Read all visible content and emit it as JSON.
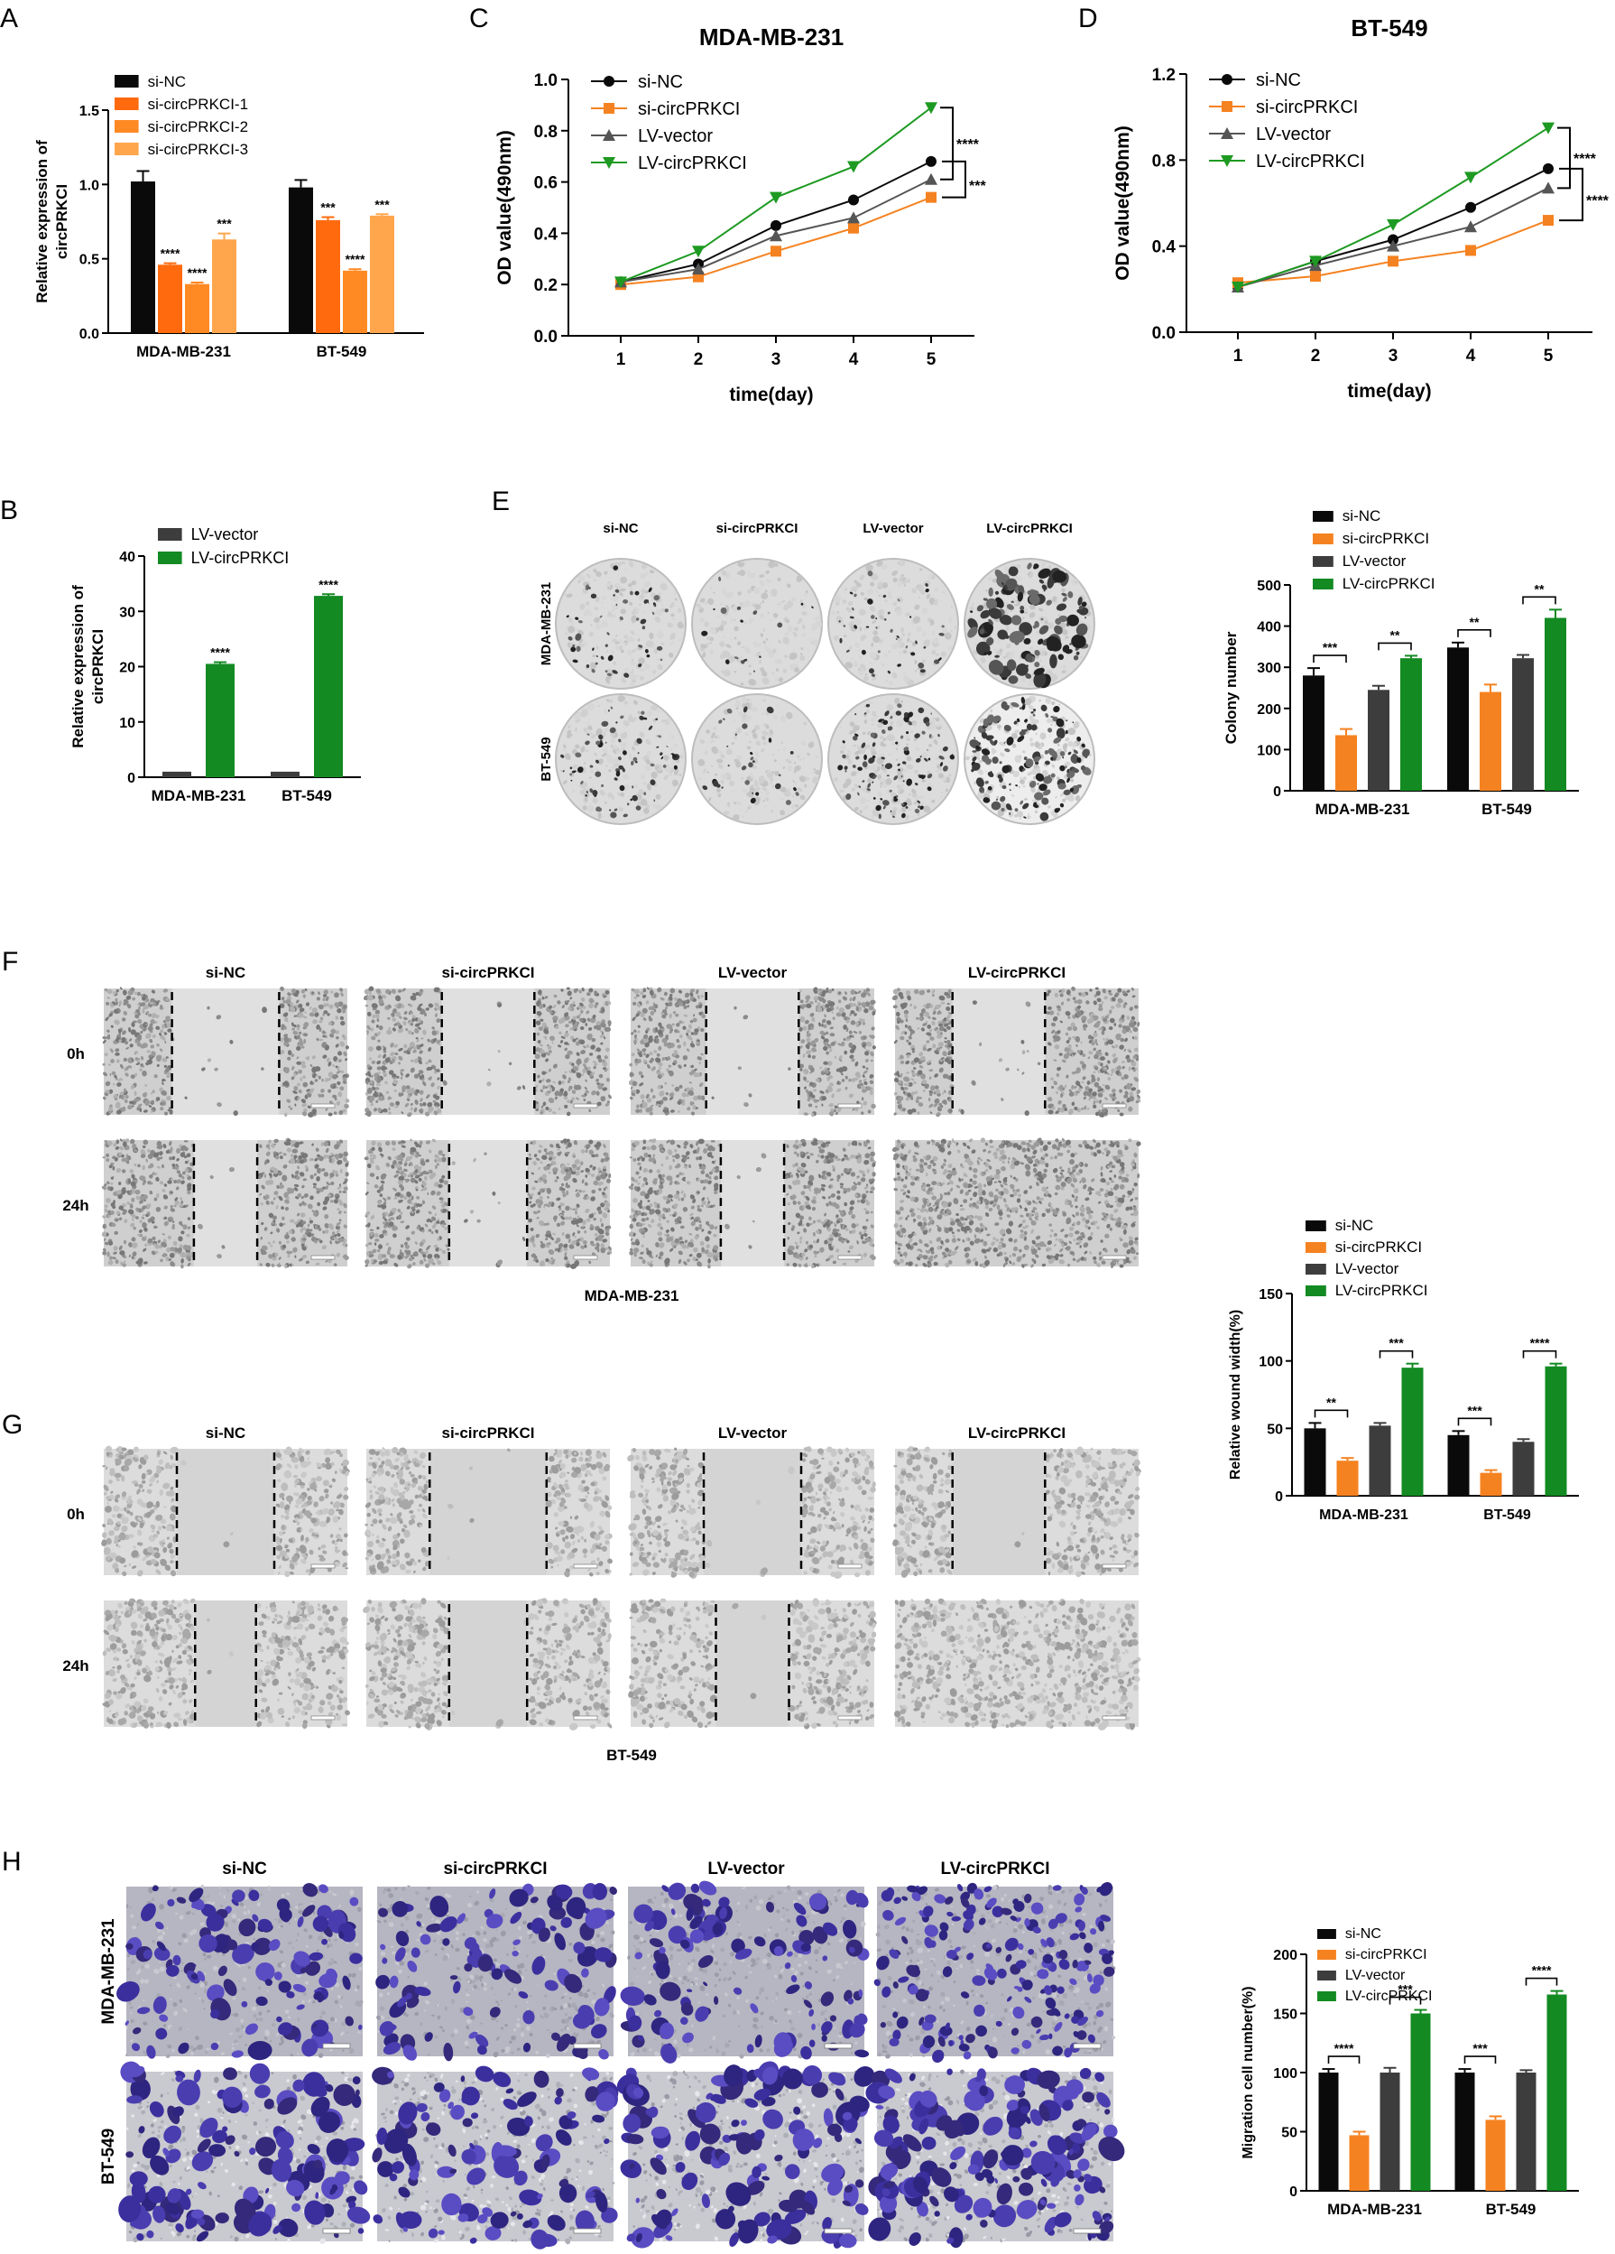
{
  "palette": {
    "black": "#0a0a0a",
    "dark_gray": "#3d3d3d",
    "orange": "#f58220",
    "orange_light": "#ffa64d",
    "orange_mid": "#ff8a24",
    "orange_deep": "#ff6a0e",
    "green": "#138a22",
    "green_line": "#1e9a22",
    "gray_line": "#555555"
  },
  "chart_data": [
    {
      "id": "A",
      "type": "bar",
      "panel_label": "A",
      "ylabel": "Relative expression of circPRKCI",
      "ylim": [
        0,
        1.5
      ],
      "yticks": [
        "0.0",
        "0.5",
        "1.0",
        "1.5"
      ],
      "categories": [
        "MDA-MB-231",
        "BT-549"
      ],
      "legend": [
        "si-NC",
        "si-circPRKCI-1",
        "si-circPRKCI-2",
        "si-circPRKCI-3"
      ],
      "colors": [
        "#0a0a0a",
        "#ff6a0e",
        "#ff8a24",
        "#ffa64d"
      ],
      "series": [
        {
          "name": "si-NC",
          "values": [
            1.02,
            0.98
          ],
          "err": [
            0.07,
            0.05
          ],
          "sig": [
            "",
            ""
          ]
        },
        {
          "name": "si-circPRKCI-1",
          "values": [
            0.46,
            0.76
          ],
          "err": [
            0.01,
            0.02
          ],
          "sig": [
            "****",
            "***"
          ]
        },
        {
          "name": "si-circPRKCI-2",
          "values": [
            0.33,
            0.42
          ],
          "err": [
            0.01,
            0.01
          ],
          "sig": [
            "****",
            "****"
          ]
        },
        {
          "name": "si-circPRKCI-3",
          "values": [
            0.63,
            0.79
          ],
          "err": [
            0.04,
            0.01
          ],
          "sig": [
            "***",
            "***"
          ]
        }
      ]
    },
    {
      "id": "B",
      "type": "bar",
      "panel_label": "B",
      "ylabel": "Relative expression of circPRKCI",
      "ylim": [
        0,
        40
      ],
      "yticks": [
        "0",
        "10",
        "20",
        "30",
        "40"
      ],
      "categories": [
        "MDA-MB-231",
        "BT-549"
      ],
      "legend": [
        "LV-vector",
        "LV-circPRKCI"
      ],
      "colors": [
        "#3d3d3d",
        "#138a22"
      ],
      "series": [
        {
          "name": "LV-vector",
          "values": [
            1.0,
            1.0
          ],
          "err": [
            0,
            0
          ],
          "sig": [
            "",
            ""
          ]
        },
        {
          "name": "LV-circPRKCI",
          "values": [
            20.5,
            32.8
          ],
          "err": [
            0.3,
            0.3
          ],
          "sig": [
            "****",
            "****"
          ]
        }
      ]
    },
    {
      "id": "C",
      "type": "line",
      "panel_label": "C",
      "title": "MDA-MB-231",
      "xlabel": "time(day)",
      "ylabel": "OD value(490nm)",
      "x": [
        1,
        2,
        3,
        4,
        5
      ],
      "ylim": [
        0,
        1.0
      ],
      "yticks": [
        "0.0",
        "0.2",
        "0.4",
        "0.6",
        "0.8",
        "1.0"
      ],
      "series": [
        {
          "name": "si-NC",
          "marker": "circle",
          "color": "#0a0a0a",
          "values": [
            0.21,
            0.28,
            0.43,
            0.53,
            0.68
          ]
        },
        {
          "name": "si-circPRKCI",
          "marker": "square",
          "color": "#f58220",
          "values": [
            0.2,
            0.23,
            0.33,
            0.42,
            0.54
          ]
        },
        {
          "name": "LV-vector",
          "marker": "triangle-up",
          "color": "#555555",
          "values": [
            0.21,
            0.26,
            0.39,
            0.46,
            0.61
          ]
        },
        {
          "name": "LV-circPRKCI",
          "marker": "triangle-down",
          "color": "#1e9a22",
          "values": [
            0.21,
            0.33,
            0.54,
            0.66,
            0.89
          ]
        }
      ],
      "sig_upper": "****",
      "sig_lower": "***"
    },
    {
      "id": "D",
      "type": "line",
      "panel_label": "D",
      "title": "BT-549",
      "xlabel": "time(day)",
      "ylabel": "OD value(490nm)",
      "x": [
        1,
        2,
        3,
        4,
        5
      ],
      "ylim": [
        0,
        1.2
      ],
      "yticks": [
        "0.0",
        "0.4",
        "0.8",
        "1.2"
      ],
      "series": [
        {
          "name": "si-NC",
          "marker": "circle",
          "color": "#0a0a0a",
          "values": [
            0.21,
            0.33,
            0.43,
            0.58,
            0.76
          ]
        },
        {
          "name": "si-circPRKCI",
          "marker": "square",
          "color": "#f58220",
          "values": [
            0.23,
            0.26,
            0.33,
            0.38,
            0.52
          ]
        },
        {
          "name": "LV-vector",
          "marker": "triangle-up",
          "color": "#555555",
          "values": [
            0.21,
            0.31,
            0.4,
            0.49,
            0.67
          ]
        },
        {
          "name": "LV-circPRKCI",
          "marker": "triangle-down",
          "color": "#1e9a22",
          "values": [
            0.21,
            0.33,
            0.5,
            0.72,
            0.95
          ]
        }
      ],
      "sig_upper": "****",
      "sig_lower": "****"
    },
    {
      "id": "E",
      "type": "bar",
      "panel_label": "",
      "ylabel": "Colony number",
      "ylim": [
        0,
        500
      ],
      "yticks": [
        "0",
        "100",
        "200",
        "300",
        "400",
        "500"
      ],
      "categories": [
        "MDA-MB-231",
        "BT-549"
      ],
      "legend": [
        "si-NC",
        "si-circPRKCI",
        "LV-vector",
        "LV-circPRKCI"
      ],
      "colors": [
        "#0a0a0a",
        "#f58220",
        "#3d3d3d",
        "#138a22"
      ],
      "series": [
        {
          "name": "si-NC",
          "values": [
            280,
            348
          ],
          "err": [
            18,
            12
          ]
        },
        {
          "name": "si-circPRKCI",
          "values": [
            135,
            240
          ],
          "err": [
            15,
            18
          ]
        },
        {
          "name": "LV-vector",
          "values": [
            245,
            322
          ],
          "err": [
            10,
            8
          ]
        },
        {
          "name": "LV-circPRKCI",
          "values": [
            322,
            420
          ],
          "err": [
            6,
            20
          ]
        }
      ],
      "brackets": [
        [
          "***",
          "**"
        ],
        [
          "**",
          "**"
        ]
      ]
    },
    {
      "id": "FG",
      "type": "bar",
      "panel_label": "",
      "ylabel": "Relative wound width(%)",
      "ylim": [
        0,
        150
      ],
      "yticks": [
        "0",
        "50",
        "100",
        "150"
      ],
      "categories": [
        "MDA-MB-231",
        "BT-549"
      ],
      "legend": [
        "si-NC",
        "si-circPRKCI",
        "LV-vector",
        "LV-circPRKCI"
      ],
      "colors": [
        "#0a0a0a",
        "#f58220",
        "#3d3d3d",
        "#138a22"
      ],
      "series": [
        {
          "name": "si-NC",
          "values": [
            50,
            45
          ],
          "err": [
            4,
            3
          ]
        },
        {
          "name": "si-circPRKCI",
          "values": [
            26,
            17
          ],
          "err": [
            2,
            2
          ]
        },
        {
          "name": "LV-vector",
          "values": [
            52,
            40
          ],
          "err": [
            2,
            2
          ]
        },
        {
          "name": "LV-circPRKCI",
          "values": [
            95,
            96
          ],
          "err": [
            3,
            2
          ]
        }
      ],
      "brackets": [
        [
          "**",
          "***"
        ],
        [
          "***",
          "****"
        ]
      ]
    },
    {
      "id": "H",
      "type": "bar",
      "panel_label": "",
      "ylabel": "Migration cell number(%)",
      "ylim": [
        0,
        200
      ],
      "yticks": [
        "0",
        "50",
        "100",
        "150",
        "200"
      ],
      "categories": [
        "MDA-MB-231",
        "BT-549"
      ],
      "legend": [
        "si-NC",
        "si-circPRKCI",
        "LV-vector",
        "LV-circPRKCI"
      ],
      "colors": [
        "#0a0a0a",
        "#f58220",
        "#3d3d3d",
        "#138a22"
      ],
      "series": [
        {
          "name": "si-NC",
          "values": [
            100,
            100
          ],
          "err": [
            3,
            3
          ]
        },
        {
          "name": "si-circPRKCI",
          "values": [
            47,
            60
          ],
          "err": [
            3,
            3
          ]
        },
        {
          "name": "LV-vector",
          "values": [
            100,
            100
          ],
          "err": [
            4,
            2
          ]
        },
        {
          "name": "LV-circPRKCI",
          "values": [
            150,
            166
          ],
          "err": [
            3,
            3
          ]
        }
      ],
      "brackets": [
        [
          "****",
          "***"
        ],
        [
          "***",
          "****"
        ]
      ]
    }
  ],
  "images": {
    "E": {
      "panel_label": "E",
      "columns": [
        "si-NC",
        "si-circPRKCI",
        "LV-vector",
        "LV-circPRKCI"
      ],
      "rows": [
        "MDA-MB-231",
        "BT-549"
      ],
      "density": [
        [
          0.35,
          0.05,
          0.2,
          0.9
        ],
        [
          0.5,
          0.15,
          0.7,
          1.0
        ]
      ]
    },
    "F": {
      "panel_label": "F",
      "columns": [
        "si-NC",
        "si-circPRKCI",
        "LV-vector",
        "LV-circPRKCI"
      ],
      "rows": [
        "0h",
        "24h"
      ],
      "caption": "MDA-MB-231",
      "gap_0h": [
        0.44,
        0.38,
        0.38,
        0.38
      ],
      "gap_24h": [
        0.26,
        0.32,
        0.26,
        0.0
      ]
    },
    "G": {
      "panel_label": "G",
      "columns": [
        "si-NC",
        "si-circPRKCI",
        "LV-vector",
        "LV-circPRKCI"
      ],
      "rows": [
        "0h",
        "24h"
      ],
      "caption": "BT-549",
      "gap_0h": [
        0.4,
        0.48,
        0.4,
        0.38
      ],
      "gap_24h": [
        0.25,
        0.32,
        0.3,
        0.0
      ]
    },
    "H": {
      "panel_label": "H",
      "columns": [
        "si-NC",
        "si-circPRKCI",
        "LV-vector",
        "LV-circPRKCI"
      ],
      "rows": [
        "MDA-MB-231",
        "BT-549"
      ],
      "density": [
        [
          0.45,
          0.4,
          0.45,
          0.85
        ],
        [
          0.55,
          0.35,
          0.5,
          0.75
        ]
      ]
    }
  }
}
